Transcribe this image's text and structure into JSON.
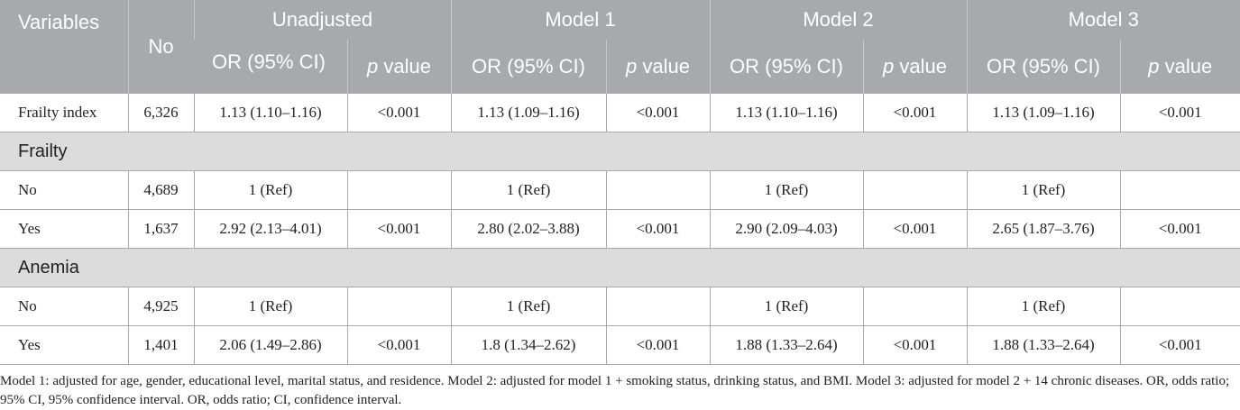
{
  "table": {
    "header": [
      "Variables",
      "No",
      "Unadjusted",
      "Model 1",
      "Model 2",
      "Model 3"
    ],
    "subheader": [
      "OR (95% CI)",
      "p value"
    ],
    "rows": [
      {
        "label": "Frailty index",
        "cells": [
          "6,326",
          "1.13 (1.10–1.16)",
          "<0.001",
          "1.13 (1.09–1.16)",
          "<0.001",
          "1.13 (1.10–1.16)",
          "<0.001",
          "1.13 (1.09–1.16)",
          "<0.001"
        ]
      },
      {
        "section": "Frailty"
      },
      {
        "label": "No",
        "cells": [
          "4,689",
          "1 (Ref)",
          null,
          "1 (Ref)",
          null,
          "1 (Ref)",
          null,
          "1 (Ref)",
          null
        ]
      },
      {
        "label": "Yes",
        "cells": [
          "1,637",
          "2.92 (2.13–4.01)",
          "<0.001",
          "2.80 (2.02–3.88)",
          "<0.001",
          "2.90 (2.09–4.03)",
          "<0.001",
          "2.65 (1.87–3.76)",
          "<0.001"
        ]
      },
      {
        "section": "Anemia"
      },
      {
        "label": "No",
        "cells": [
          "4,925",
          "1 (Ref)",
          null,
          "1 (Ref)",
          null,
          "1 (Ref)",
          null,
          "1 (Ref)",
          null
        ]
      },
      {
        "label": "Yes",
        "cells": [
          "1,401",
          "2.06 (1.49–2.86)",
          "<0.001",
          "1.8 (1.34–2.62)",
          "<0.001",
          "1.88 (1.33–2.64)",
          "<0.001",
          "1.88 (1.33–2.64)",
          "<0.001"
        ]
      }
    ],
    "footnote": "Model 1: adjusted for age, gender, educational level, marital status, and residence. Model 2: adjusted for model 1 + smoking status, drinking status, and BMI. Model 3: adjusted for model 2 + 14 chronic diseases. OR, odds ratio; 95% CI, 95% confidence interval. OR, odds ratio; CI, confidence interval."
  }
}
